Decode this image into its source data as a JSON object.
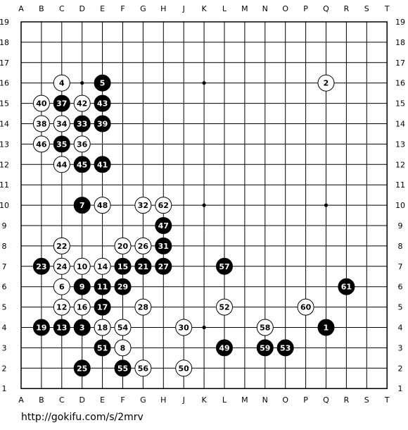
{
  "board": {
    "size": 19,
    "col_labels": [
      "A",
      "B",
      "C",
      "D",
      "E",
      "F",
      "G",
      "H",
      "J",
      "K",
      "L",
      "M",
      "N",
      "O",
      "P",
      "Q",
      "R",
      "S",
      "T"
    ],
    "row_labels": [
      "19",
      "18",
      "17",
      "16",
      "15",
      "14",
      "13",
      "12",
      "11",
      "10",
      "9",
      "8",
      "7",
      "6",
      "5",
      "4",
      "3",
      "2",
      "1"
    ],
    "star_points": [
      "D16",
      "K16",
      "Q16",
      "K10",
      "Q10",
      "K4"
    ],
    "colors": {
      "background": "#ffffff",
      "line": "#000000",
      "black_stone": "#000000",
      "white_stone": "#ffffff"
    }
  },
  "moves": [
    {
      "n": 1,
      "color": "black",
      "pos": "Q4"
    },
    {
      "n": 2,
      "color": "white",
      "pos": "Q16"
    },
    {
      "n": 3,
      "color": "black",
      "pos": "D4"
    },
    {
      "n": 4,
      "color": "white",
      "pos": "C16"
    },
    {
      "n": 5,
      "color": "black",
      "pos": "E16"
    },
    {
      "n": 6,
      "color": "white",
      "pos": "C6"
    },
    {
      "n": 7,
      "color": "black",
      "pos": "D10"
    },
    {
      "n": 8,
      "color": "white",
      "pos": "F3"
    },
    {
      "n": 9,
      "color": "black",
      "pos": "D6"
    },
    {
      "n": 10,
      "color": "white",
      "pos": "D7"
    },
    {
      "n": 11,
      "color": "black",
      "pos": "E6"
    },
    {
      "n": 12,
      "color": "white",
      "pos": "C5"
    },
    {
      "n": 13,
      "color": "black",
      "pos": "C4"
    },
    {
      "n": 14,
      "color": "white",
      "pos": "E7"
    },
    {
      "n": 15,
      "color": "black",
      "pos": "F7"
    },
    {
      "n": 16,
      "color": "white",
      "pos": "D5"
    },
    {
      "n": 17,
      "color": "black",
      "pos": "E5"
    },
    {
      "n": 18,
      "color": "white",
      "pos": "E4"
    },
    {
      "n": 19,
      "color": "black",
      "pos": "B4"
    },
    {
      "n": 20,
      "color": "white",
      "pos": "F8"
    },
    {
      "n": 21,
      "color": "black",
      "pos": "G7"
    },
    {
      "n": 22,
      "color": "white",
      "pos": "C8"
    },
    {
      "n": 23,
      "color": "black",
      "pos": "B7"
    },
    {
      "n": 24,
      "color": "white",
      "pos": "C7"
    },
    {
      "n": 25,
      "color": "black",
      "pos": "D2"
    },
    {
      "n": 26,
      "color": "white",
      "pos": "G8"
    },
    {
      "n": 27,
      "color": "black",
      "pos": "H7"
    },
    {
      "n": 28,
      "color": "white",
      "pos": "G5"
    },
    {
      "n": 29,
      "color": "black",
      "pos": "F6"
    },
    {
      "n": 30,
      "color": "white",
      "pos": "J4"
    },
    {
      "n": 31,
      "color": "black",
      "pos": "H8"
    },
    {
      "n": 32,
      "color": "white",
      "pos": "G10"
    },
    {
      "n": 33,
      "color": "black",
      "pos": "D14"
    },
    {
      "n": 34,
      "color": "white",
      "pos": "C14"
    },
    {
      "n": 35,
      "color": "black",
      "pos": "C13"
    },
    {
      "n": 36,
      "color": "white",
      "pos": "D13"
    },
    {
      "n": 37,
      "color": "black",
      "pos": "C15"
    },
    {
      "n": 38,
      "color": "white",
      "pos": "B14"
    },
    {
      "n": 39,
      "color": "black",
      "pos": "E14"
    },
    {
      "n": 40,
      "color": "white",
      "pos": "B15"
    },
    {
      "n": 41,
      "color": "black",
      "pos": "E12"
    },
    {
      "n": 42,
      "color": "white",
      "pos": "D15"
    },
    {
      "n": 43,
      "color": "black",
      "pos": "E15"
    },
    {
      "n": 44,
      "color": "white",
      "pos": "C12"
    },
    {
      "n": 45,
      "color": "black",
      "pos": "D12"
    },
    {
      "n": 46,
      "color": "white",
      "pos": "B13"
    },
    {
      "n": 47,
      "color": "black",
      "pos": "H9"
    },
    {
      "n": 48,
      "color": "white",
      "pos": "E10"
    },
    {
      "n": 49,
      "color": "black",
      "pos": "L3"
    },
    {
      "n": 50,
      "color": "white",
      "pos": "J2"
    },
    {
      "n": 51,
      "color": "black",
      "pos": "E3"
    },
    {
      "n": 52,
      "color": "white",
      "pos": "L5"
    },
    {
      "n": 53,
      "color": "black",
      "pos": "O3"
    },
    {
      "n": 54,
      "color": "white",
      "pos": "F4"
    },
    {
      "n": 55,
      "color": "black",
      "pos": "F2"
    },
    {
      "n": 56,
      "color": "white",
      "pos": "G2"
    },
    {
      "n": 57,
      "color": "black",
      "pos": "L7"
    },
    {
      "n": 58,
      "color": "white",
      "pos": "N4"
    },
    {
      "n": 59,
      "color": "black",
      "pos": "N3"
    },
    {
      "n": 60,
      "color": "white",
      "pos": "P5"
    },
    {
      "n": 61,
      "color": "black",
      "pos": "R6"
    },
    {
      "n": 62,
      "color": "white",
      "pos": "H10"
    }
  ],
  "footer": {
    "url": "http://gokifu.com/s/2mrv"
  }
}
